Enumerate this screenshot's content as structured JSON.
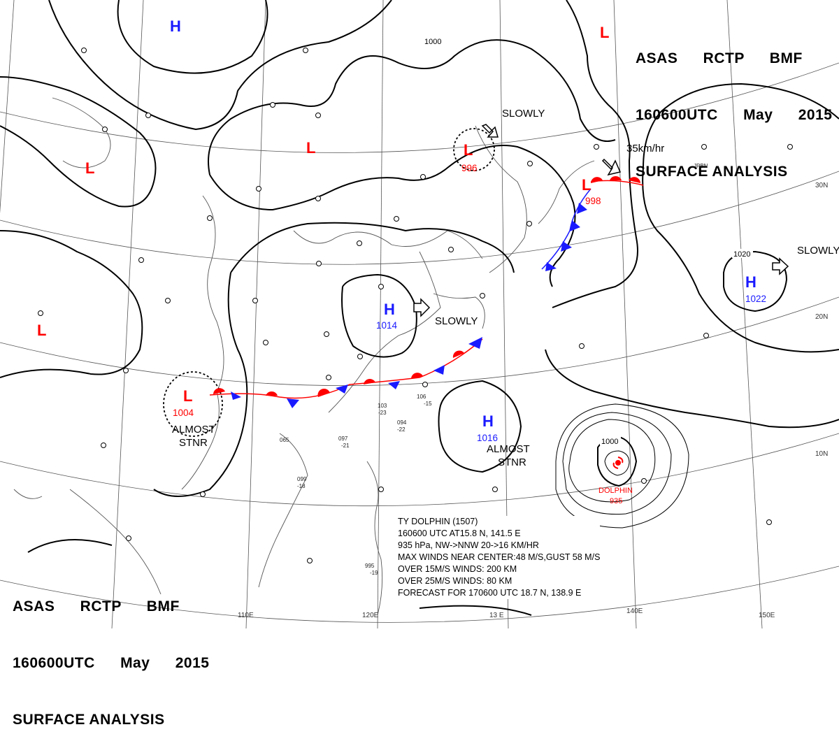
{
  "header_top": {
    "line1": "ASAS RCTP BMF",
    "line2": "160600UTC May 2015",
    "line3": "SURFACE ANALYSIS"
  },
  "header_bottom": {
    "line1": "ASAS RCTP BMF",
    "line2": "160600UTC May 2015",
    "line3": "SURFACE ANALYSIS"
  },
  "pressure_centers": [
    {
      "type": "H",
      "value": "",
      "color": "#1a1aff"
    },
    {
      "type": "L",
      "value": "",
      "color": "#ff0000"
    },
    {
      "type": "L",
      "value": "",
      "color": "#ff0000"
    },
    {
      "type": "L",
      "value": "",
      "color": "#ff0000"
    },
    {
      "type": "L",
      "value": "",
      "color": "#ff0000"
    },
    {
      "type": "L",
      "value": "996",
      "color": "#ff0000"
    },
    {
      "type": "L",
      "value": "998",
      "color": "#ff0000"
    },
    {
      "type": "H",
      "value": "1014",
      "color": "#1a1aff"
    },
    {
      "type": "L",
      "value": "1004",
      "color": "#ff0000"
    },
    {
      "type": "H",
      "value": "1016",
      "color": "#1a1aff"
    },
    {
      "type": "H",
      "value": "1022",
      "color": "#1a1aff"
    }
  ],
  "motion_labels": {
    "slowly_north": "SLOWLY",
    "speed_ne": "35km/hr",
    "slowly_east": "SLOWLY",
    "slowly_center": "SLOWLY",
    "almost_stnr_west": "ALMOST\nSTNR",
    "almost_stnr_east": "ALMOST\nSTNR"
  },
  "isobar_labels": {
    "north": "1000",
    "east": "1020",
    "typhoon": "1000"
  },
  "typhoon": {
    "name": "DOLPHIN",
    "pressure": "935"
  },
  "typhoon_info": [
    "TY DOLPHIN (1507)",
    "160600 UTC AT15.8 N, 141.5 E",
    "935 hPa, NW->NNW 20->16 KM/HR",
    "MAX WINDS NEAR CENTER:48 M/S,GUST 58 M/S",
    "OVER 15M/S WINDS: 200 KM",
    "OVER 25M/S WINDS: 80 KM",
    "FORECAST FOR 170600 UTC 18.7 N, 138.9 E"
  ],
  "grid_labels": {
    "lat_30": "30N",
    "lat_20": "20N",
    "lat_10": "10N",
    "lon_110": "110E",
    "lon_120": "120E",
    "lon_130": "13 E",
    "lon_140": "140E",
    "lon_150": "150E"
  },
  "region_label": "JPBN",
  "station_samples": [
    "995",
    "-19",
    "097",
    "-21",
    "106",
    "-15",
    "103",
    "-23",
    "094",
    "-22",
    "065",
    "099",
    "-18"
  ],
  "colors": {
    "high": "#1a1aff",
    "low": "#ff0000",
    "cold_front": "#1a1aff",
    "warm_front": "#ff0000"
  }
}
